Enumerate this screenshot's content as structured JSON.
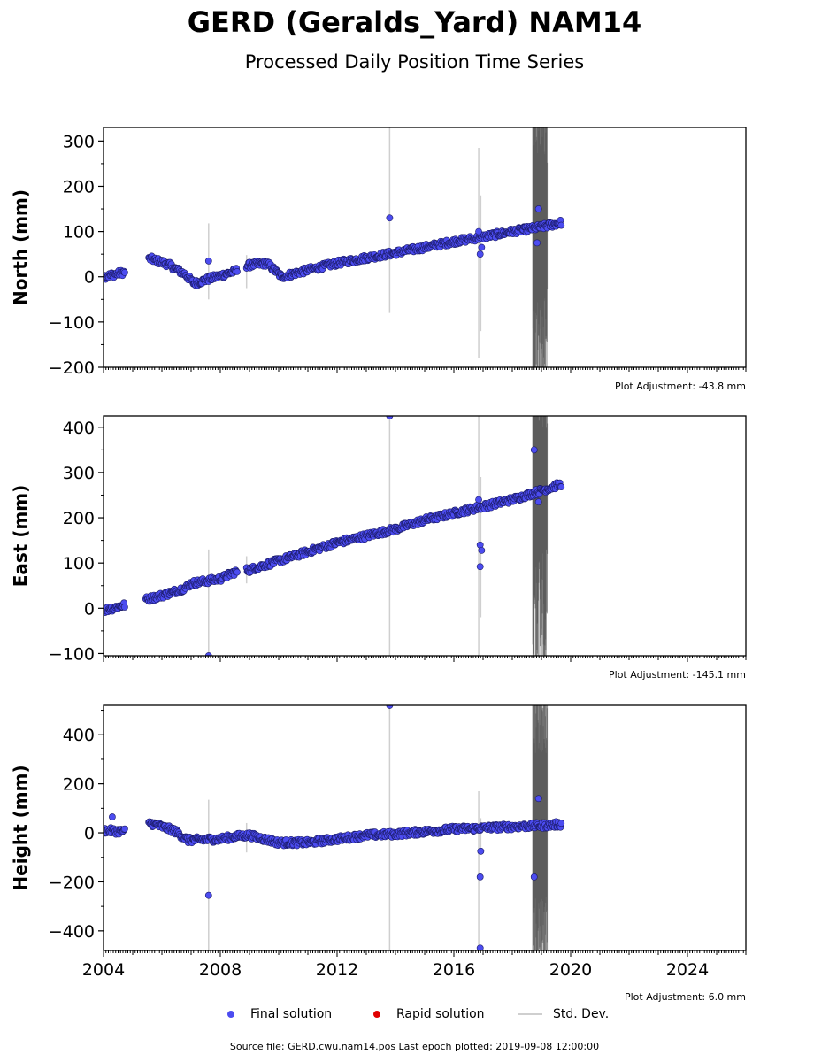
{
  "title": "GERD (Geralds_Yard) NAM14",
  "subtitle": "Processed Daily Position Time Series",
  "legend": {
    "final": "Final solution",
    "rapid": "Rapid solution",
    "std": "Std. Dev."
  },
  "footer": "Source file: GERD.cwu.nam14.pos  Last epoch plotted: 2019-09-08 12:00:00",
  "colors": {
    "final": "#4c4cf0",
    "final_edge": "#1a1a66",
    "rapid": "#e00000",
    "std": "#cfcfcf",
    "std_dark": "#555555"
  },
  "chart_data": [
    {
      "type": "scatter",
      "ylabel": "North (mm)",
      "adjustment": "Plot Adjustment: -43.8 mm",
      "xlim": [
        2004.0,
        2026.0
      ],
      "ylim": [
        -200,
        330
      ],
      "yticks": [
        -200,
        -100,
        0,
        100,
        200,
        300
      ],
      "trend": [
        [
          2004.0,
          0
        ],
        [
          2004.7,
          10
        ],
        [
          2005.6,
          40
        ],
        [
          2006.2,
          28
        ],
        [
          2006.8,
          5
        ],
        [
          2007.1,
          -15
        ],
        [
          2007.6,
          -5
        ],
        [
          2008.5,
          12
        ],
        [
          2008.9,
          25
        ],
        [
          2009.6,
          30
        ],
        [
          2010.1,
          0
        ],
        [
          2011.0,
          15
        ],
        [
          2012.0,
          30
        ],
        [
          2013.0,
          42
        ],
        [
          2014.0,
          53
        ],
        [
          2015.0,
          65
        ],
        [
          2016.0,
          78
        ],
        [
          2017.0,
          88
        ],
        [
          2018.0,
          100
        ],
        [
          2019.0,
          110
        ],
        [
          2019.7,
          120
        ]
      ],
      "gaps": [
        [
          2004.75,
          2005.55
        ],
        [
          2008.6,
          2008.9
        ]
      ],
      "outliers": [
        [
          2007.6,
          35
        ],
        [
          2013.8,
          130
        ],
        [
          2016.9,
          50
        ],
        [
          2016.95,
          65
        ],
        [
          2016.85,
          100
        ],
        [
          2018.9,
          150
        ],
        [
          2018.85,
          75
        ]
      ],
      "std_bars": [
        [
          2007.6,
          -50,
          118
        ],
        [
          2008.9,
          -25,
          48
        ],
        [
          2013.8,
          -80,
          330
        ],
        [
          2016.85,
          -180,
          285
        ],
        [
          2016.92,
          -120,
          180
        ]
      ],
      "dense_noise": [
        2018.7,
        2019.2,
        -200,
        330
      ]
    },
    {
      "type": "scatter",
      "ylabel": "East (mm)",
      "adjustment": "Plot Adjustment: -145.1 mm",
      "xlim": [
        2004.0,
        2026.0
      ],
      "ylim": [
        -105,
        425
      ],
      "yticks": [
        -100,
        0,
        100,
        200,
        300,
        400
      ],
      "trend": [
        [
          2004.0,
          -5
        ],
        [
          2004.6,
          5
        ],
        [
          2005.5,
          20
        ],
        [
          2006.1,
          30
        ],
        [
          2006.8,
          45
        ],
        [
          2007.0,
          55
        ],
        [
          2008.0,
          65
        ],
        [
          2008.5,
          80
        ],
        [
          2009.0,
          85
        ],
        [
          2010.0,
          105
        ],
        [
          2011.0,
          125
        ],
        [
          2012.0,
          145
        ],
        [
          2013.0,
          160
        ],
        [
          2014.0,
          175
        ],
        [
          2015.0,
          195
        ],
        [
          2016.0,
          210
        ],
        [
          2017.0,
          225
        ],
        [
          2018.0,
          240
        ],
        [
          2019.0,
          260
        ],
        [
          2019.7,
          275
        ]
      ],
      "gaps": [
        [
          2004.75,
          2005.45
        ],
        [
          2008.6,
          2008.9
        ]
      ],
      "outliers": [
        [
          2007.6,
          -105
        ],
        [
          2013.8,
          425
        ],
        [
          2016.9,
          140
        ],
        [
          2016.95,
          128
        ],
        [
          2016.9,
          92
        ],
        [
          2016.85,
          240
        ],
        [
          2018.75,
          350
        ],
        [
          2018.9,
          235
        ]
      ],
      "std_bars": [
        [
          2007.6,
          -105,
          130
        ],
        [
          2008.9,
          55,
          115
        ],
        [
          2013.8,
          -105,
          425
        ],
        [
          2016.85,
          -105,
          425
        ],
        [
          2016.92,
          -20,
          290
        ]
      ],
      "dense_noise": [
        2018.7,
        2019.2,
        -105,
        425
      ]
    },
    {
      "type": "scatter",
      "ylabel": "Height (mm)",
      "adjustment": "Plot Adjustment: 6.0 mm",
      "xlim": [
        2004.0,
        2026.0
      ],
      "ylim": [
        -480,
        520
      ],
      "yticks": [
        -400,
        -200,
        0,
        200,
        400
      ],
      "xticks": [
        2004,
        2008,
        2012,
        2016,
        2020,
        2024
      ],
      "trend": [
        [
          2004.0,
          10
        ],
        [
          2004.7,
          5
        ],
        [
          2005.6,
          40
        ],
        [
          2006.4,
          10
        ],
        [
          2006.9,
          -30
        ],
        [
          2008.0,
          -25
        ],
        [
          2008.5,
          -15
        ],
        [
          2009.0,
          -10
        ],
        [
          2010.0,
          -40
        ],
        [
          2011.0,
          -40
        ],
        [
          2012.0,
          -25
        ],
        [
          2013.0,
          -10
        ],
        [
          2014.0,
          -5
        ],
        [
          2015.0,
          5
        ],
        [
          2016.0,
          15
        ],
        [
          2017.0,
          20
        ],
        [
          2018.0,
          25
        ],
        [
          2019.0,
          30
        ],
        [
          2019.7,
          35
        ]
      ],
      "gaps": [
        [
          2004.75,
          2005.55
        ]
      ],
      "outliers": [
        [
          2004.3,
          65
        ],
        [
          2007.6,
          -255
        ],
        [
          2013.8,
          520
        ],
        [
          2016.9,
          -180
        ],
        [
          2016.92,
          -75
        ],
        [
          2016.9,
          -470
        ],
        [
          2018.9,
          140
        ],
        [
          2018.75,
          -180
        ]
      ],
      "std_bars": [
        [
          2007.6,
          -480,
          135
        ],
        [
          2008.9,
          -80,
          40
        ],
        [
          2013.8,
          -480,
          520
        ],
        [
          2016.85,
          -480,
          170
        ],
        [
          2016.92,
          -60,
          60
        ]
      ],
      "dense_noise": [
        2018.7,
        2019.2,
        -480,
        520
      ]
    }
  ]
}
